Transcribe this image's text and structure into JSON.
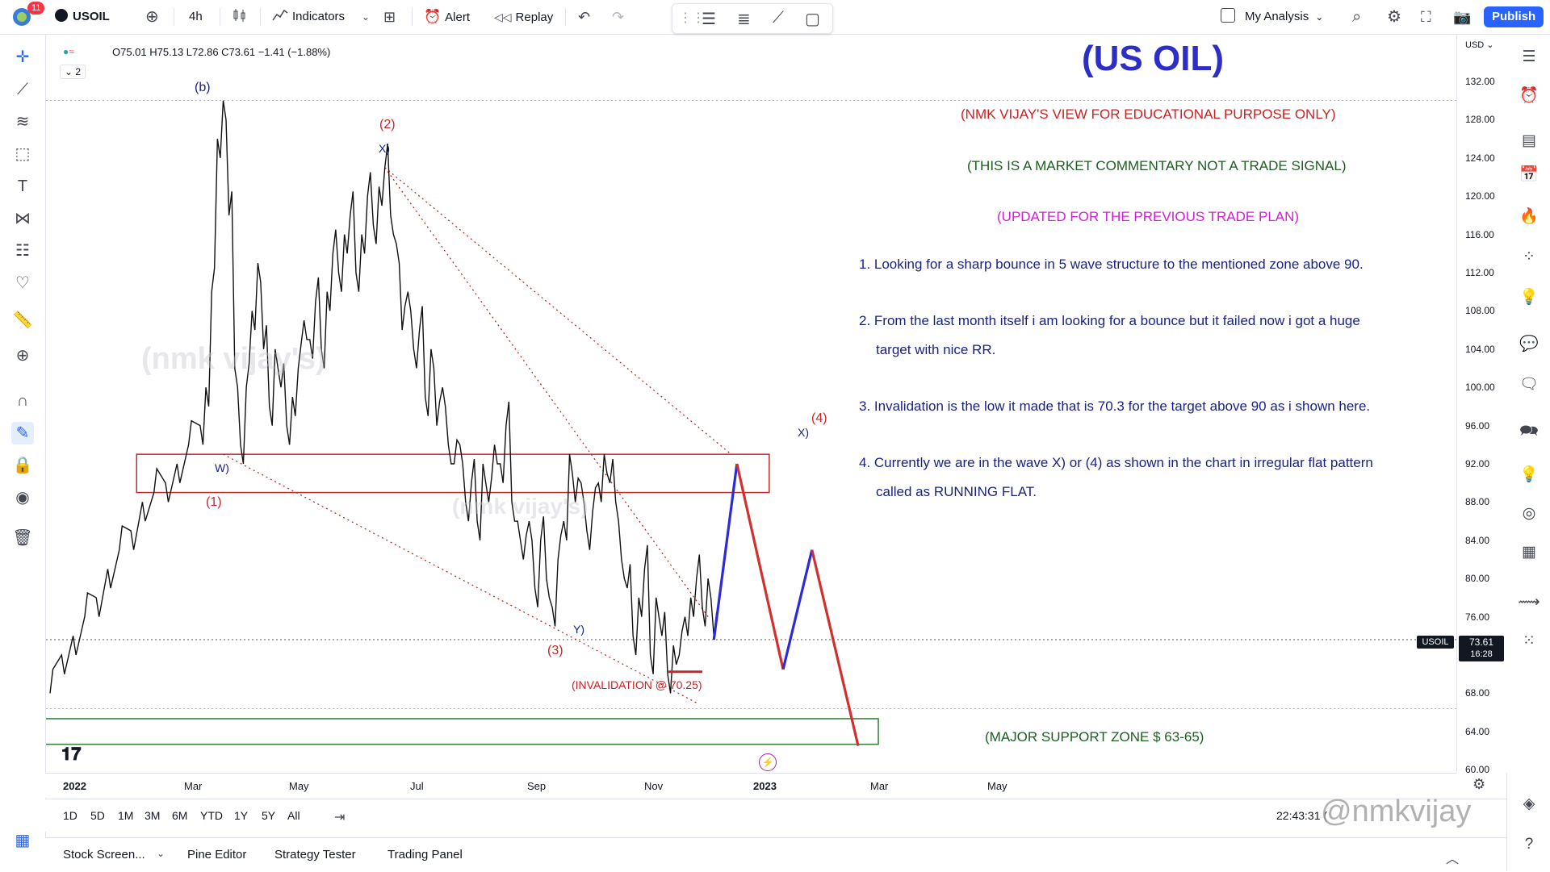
{
  "topbar": {
    "notification_count": "11",
    "symbol": "USOIL",
    "interval": "4h",
    "indicators_label": "Indicators",
    "alert_label": "Alert",
    "replay_label": "Replay",
    "layout_name": "My Analysis",
    "publish_label": "Publish"
  },
  "legend": {
    "ohlc": "O75.01  H75.13  L72.86  C73.61  −1.41 (−1.88%)",
    "collapse_count": "2"
  },
  "price_scale": {
    "currency": "USD",
    "ticks": [
      "132.00",
      "128.00",
      "124.00",
      "120.00",
      "116.00",
      "112.00",
      "108.00",
      "104.00",
      "100.00",
      "96.00",
      "92.00",
      "88.00",
      "84.00",
      "80.00",
      "76.00",
      "72.00",
      "68.00",
      "64.00",
      "60.00"
    ],
    "last_symbol": "USOIL",
    "last_price": "73.61",
    "countdown": "16:28"
  },
  "time_axis": {
    "ticks": [
      "2022",
      "Mar",
      "May",
      "Jul",
      "Sep",
      "Nov",
      "2023",
      "Mar",
      "May"
    ]
  },
  "range_bar": {
    "ranges": [
      "1D",
      "5D",
      "1M",
      "3M",
      "6M",
      "YTD",
      "1Y",
      "5Y",
      "All"
    ],
    "clock": "22:43:31 (",
    "watermark_handle": "@nmkvijay"
  },
  "bottom_panel": {
    "tabs": [
      "Stock Screen...",
      "Pine Editor",
      "Strategy Tester",
      "Trading Panel"
    ]
  },
  "commentary": {
    "title": "(US OIL)",
    "line1": "(NMK VIJAY'S VIEW FOR EDUCATIONAL PURPOSE ONLY)",
    "line2": "(THIS IS A MARKET COMMENTARY NOT A TRADE SIGNAL)",
    "line3": "(UPDATED FOR THE PREVIOUS TRADE PLAN)",
    "p1": "1. Looking for a sharp bounce in 5 wave structure to the mentioned zone above 90.",
    "p2a": "2. From the last month itself i am looking for a bounce but it failed now i got a huge",
    "p2b": "target with nice RR.",
    "p3": "3. Invalidation is the low it made that is 70.3 for the target above 90 as i shown here.",
    "p4a": "4. Currently we are in the wave X) or (4) as shown in the chart in irregular flat pattern",
    "p4b": "called as RUNNING FLAT.",
    "support": "(MAJOR SUPPORT ZONE $ 63-65)",
    "invalidation": "(INVALIDATION @ 70.25)"
  },
  "wave_labels": {
    "b": "(b)",
    "two": "(2)",
    "x_top": "X)",
    "w": "W)",
    "one": "(1)",
    "y": "Y)",
    "three": "(3)",
    "four": "(4)",
    "x_right": "X)"
  },
  "watermarks": {
    "big1": "(nmk vijay's)",
    "big2": "(nmk vijay's)"
  },
  "colors": {
    "title": "#2d2dc8",
    "red_text": "#cc1f1f",
    "green_text": "#1b5e20",
    "magenta_text": "#d81bd8",
    "blue_text": "#1a237e",
    "projection_blue": "#2b2bd9",
    "projection_red": "#d32f2f",
    "zone_red": "#c62828",
    "zone_green": "#2e7d32"
  },
  "chart_data": {
    "type": "line",
    "instrument": "USOIL",
    "interval": "4h",
    "ylim": [
      60,
      134
    ],
    "y_ticks": [
      132,
      128,
      124,
      120,
      116,
      112,
      108,
      104,
      100,
      96,
      92,
      88,
      84,
      80,
      76,
      72,
      68,
      64,
      60
    ],
    "x_ticks": [
      "2022",
      "Mar",
      "May",
      "Jul",
      "Sep",
      "Nov",
      "2023",
      "Mar",
      "May"
    ],
    "series": [
      {
        "values": [
          [
            0,
            68
          ],
          [
            2,
            72
          ],
          [
            4,
            74
          ],
          [
            6,
            76
          ],
          [
            8,
            78
          ],
          [
            10,
            81
          ],
          [
            12,
            83
          ],
          [
            14,
            85
          ],
          [
            16,
            88
          ],
          [
            18,
            89
          ],
          [
            20,
            90
          ],
          [
            22,
            92
          ],
          [
            24,
            94
          ],
          [
            26,
            96
          ],
          [
            27,
            100
          ],
          [
            28,
            110
          ],
          [
            29,
            126
          ],
          [
            30,
            130
          ],
          [
            31,
            118
          ],
          [
            32,
            102
          ],
          [
            33,
            94
          ],
          [
            34,
            100
          ],
          [
            35,
            108
          ],
          [
            36,
            113
          ],
          [
            37,
            104
          ],
          [
            38,
            98
          ],
          [
            39,
            104
          ],
          [
            40,
            100
          ],
          [
            41,
            96
          ],
          [
            42,
            99
          ],
          [
            43,
            102
          ],
          [
            44,
            107
          ],
          [
            45,
            105
          ],
          [
            46,
            109
          ],
          [
            47,
            104
          ],
          [
            48,
            110
          ],
          [
            49,
            114
          ],
          [
            50,
            112
          ],
          [
            51,
            116
          ],
          [
            52,
            118
          ],
          [
            53,
            112
          ],
          [
            54,
            116
          ],
          [
            55,
            120
          ],
          [
            56,
            117
          ],
          [
            57,
            121
          ],
          [
            58,
            123
          ],
          [
            59,
            118
          ],
          [
            60,
            115
          ],
          [
            61,
            106
          ],
          [
            62,
            110
          ],
          [
            63,
            104
          ],
          [
            64,
            106
          ],
          [
            65,
            99
          ],
          [
            66,
            104
          ],
          [
            67,
            96
          ],
          [
            68,
            100
          ],
          [
            69,
            94
          ],
          [
            70,
            92
          ],
          [
            71,
            94
          ],
          [
            72,
            88
          ],
          [
            73,
            90
          ],
          [
            74,
            86
          ],
          [
            75,
            92
          ],
          [
            76,
            88
          ],
          [
            77,
            94
          ],
          [
            78,
            92
          ],
          [
            79,
            96
          ],
          [
            80,
            88
          ],
          [
            81,
            86
          ],
          [
            82,
            82
          ],
          [
            83,
            86
          ],
          [
            84,
            79
          ],
          [
            85,
            84
          ],
          [
            86,
            80
          ],
          [
            87,
            77
          ],
          [
            88,
            82
          ],
          [
            89,
            86
          ],
          [
            90,
            93
          ],
          [
            91,
            88
          ],
          [
            92,
            90
          ],
          [
            93,
            85
          ],
          [
            94,
            87
          ],
          [
            95,
            90
          ],
          [
            96,
            93
          ],
          [
            97,
            90
          ],
          [
            98,
            88
          ],
          [
            99,
            82
          ],
          [
            100,
            79
          ],
          [
            101,
            74
          ],
          [
            102,
            78
          ],
          [
            103,
            81
          ],
          [
            104,
            72
          ],
          [
            105,
            78
          ],
          [
            106,
            74
          ],
          [
            107,
            70
          ],
          [
            108,
            73
          ],
          [
            109,
            72
          ],
          [
            110,
            76
          ],
          [
            111,
            78
          ],
          [
            112,
            80
          ],
          [
            113,
            77
          ],
          [
            114,
            80
          ],
          [
            115,
            74
          ]
        ]
      }
    ],
    "projection": [
      {
        "name": "blue_up",
        "values": [
          [
            115,
            73.6
          ],
          [
            119,
            92
          ]
        ]
      },
      {
        "name": "red_down",
        "values": [
          [
            119,
            92
          ],
          [
            127,
            70.5
          ]
        ]
      },
      {
        "name": "blue_up2",
        "values": [
          [
            127,
            70.5
          ],
          [
            132,
            83
          ]
        ]
      },
      {
        "name": "red_down2",
        "values": [
          [
            132,
            83
          ],
          [
            140,
            62.5
          ]
        ]
      }
    ],
    "zones": [
      {
        "name": "resistance",
        "from": 89,
        "to": 93
      },
      {
        "name": "major_support",
        "from": 63,
        "to": 65
      }
    ],
    "invalidation": 70.25,
    "last_price": 73.61
  }
}
